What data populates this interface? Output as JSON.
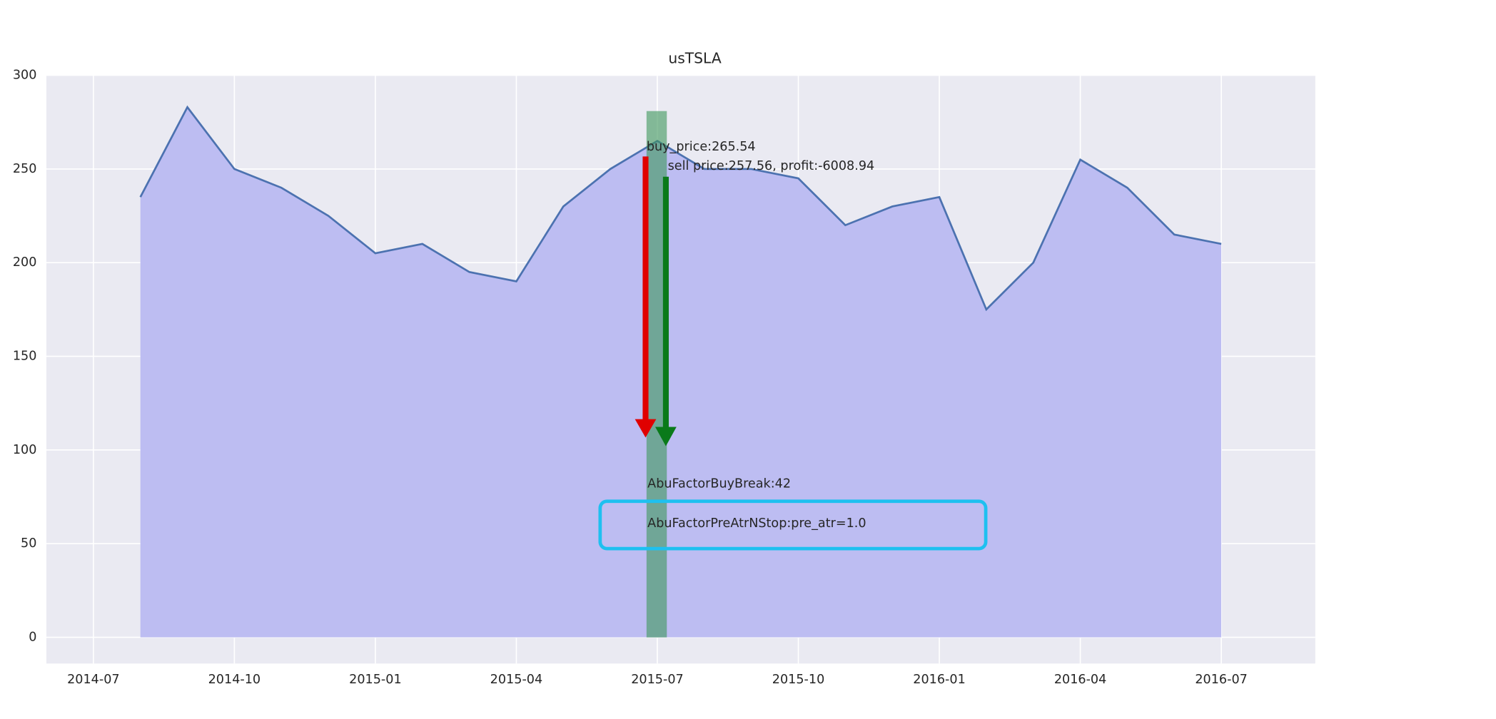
{
  "chart_data": {
    "type": "line",
    "title": "usTSLA",
    "x": [
      "2014-08",
      "2014-09",
      "2014-10",
      "2014-11",
      "2014-12",
      "2015-01",
      "2015-02",
      "2015-03",
      "2015-04",
      "2015-05",
      "2015-06",
      "2015-07",
      "2015-08",
      "2015-09",
      "2015-10",
      "2015-11",
      "2015-12",
      "2016-01",
      "2016-02",
      "2016-03",
      "2016-04",
      "2016-05",
      "2016-06",
      "2016-07"
    ],
    "values": [
      235,
      283,
      250,
      240,
      225,
      205,
      210,
      195,
      190,
      230,
      250,
      265,
      250,
      250,
      245,
      220,
      230,
      235,
      175,
      200,
      255,
      240,
      215,
      210
    ],
    "color": "#4c72b0",
    "fill": "#bdbdf2",
    "xlim": [
      "2014-06",
      "2016-09"
    ],
    "xticks": [
      "2014-07",
      "2014-10",
      "2015-01",
      "2015-04",
      "2015-07",
      "2015-10",
      "2016-01",
      "2016-04",
      "2016-07"
    ],
    "ylim": [
      -14,
      300
    ],
    "yticks": [
      0,
      50,
      100,
      150,
      200,
      250,
      300
    ],
    "grid": true,
    "annotations": [
      "buy_price:265.54",
      "sell price:257.56, profit:-6008.94",
      "AbuFactorBuyBreak:42",
      "AbuFactorPreAtrNStop:pre_atr=1.0"
    ]
  }
}
